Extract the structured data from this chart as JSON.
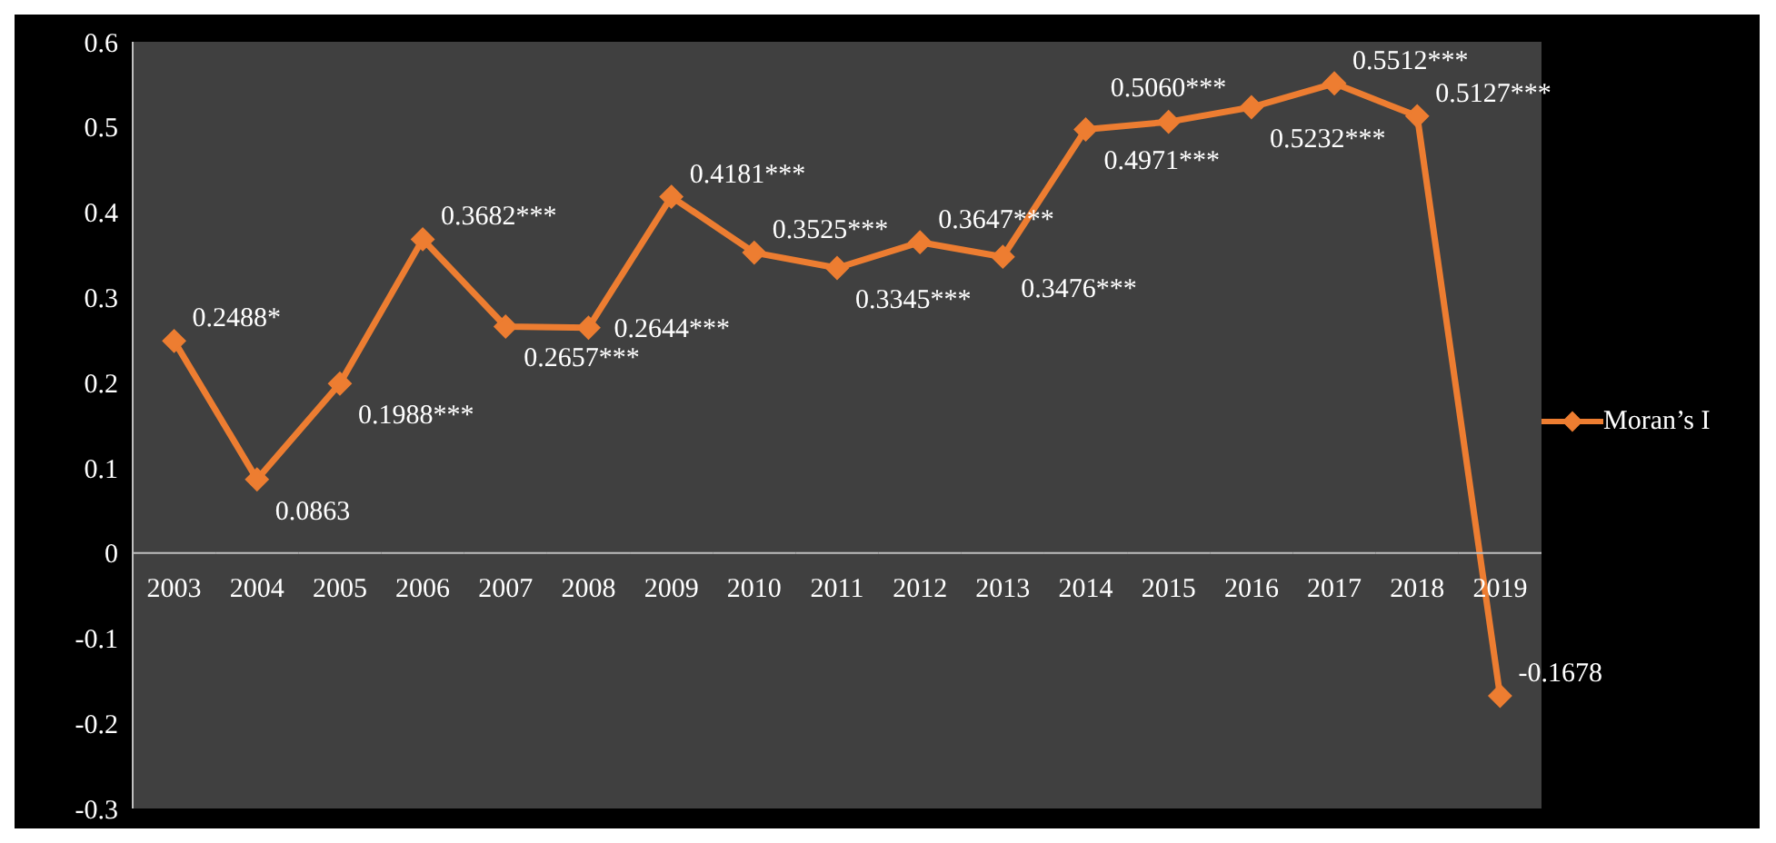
{
  "chart_data": {
    "type": "line",
    "categories": [
      "2003",
      "2004",
      "2005",
      "2006",
      "2007",
      "2008",
      "2009",
      "2010",
      "2011",
      "2012",
      "2013",
      "2014",
      "2015",
      "2016",
      "2017",
      "2018",
      "2019"
    ],
    "series": [
      {
        "name": "Moran’s I",
        "color": "#ed7d31",
        "values": [
          0.2488,
          0.0863,
          0.1988,
          0.3682,
          0.2657,
          0.2644,
          0.4181,
          0.3525,
          0.3345,
          0.3647,
          0.3476,
          0.4971,
          0.506,
          0.5232,
          0.5512,
          0.5127,
          -0.1678
        ],
        "value_labels": [
          "0.2488*",
          "0.0863",
          "0.1988***",
          "0.3682***",
          "0.2657***",
          "0.2644***",
          "0.4181***",
          "0.3525***",
          "0.3345***",
          "0.3647***",
          "0.3476***",
          "0.4971***",
          "0.5060***",
          "0.5232***",
          "0.5512***",
          "0.5127***",
          "-0.1678"
        ]
      }
    ],
    "ylim": [
      -0.3,
      0.6
    ],
    "yticks": [
      -0.3,
      -0.2,
      -0.1,
      0,
      0.1,
      0.2,
      0.3,
      0.4,
      0.5,
      0.6
    ],
    "marker": "diamond",
    "line_style": "solid",
    "legend": "right",
    "grid": false
  }
}
